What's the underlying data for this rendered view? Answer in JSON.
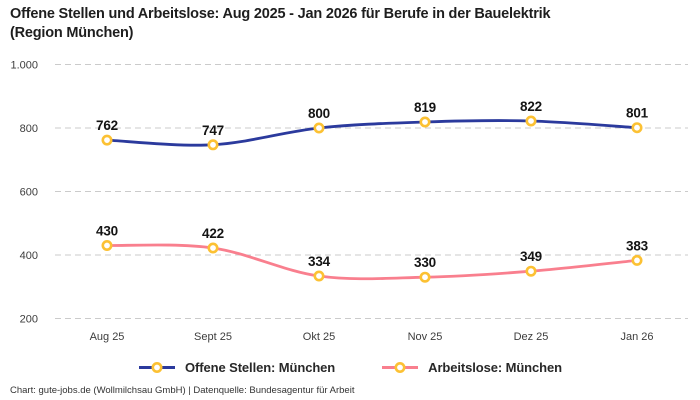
{
  "header": {
    "title_line1": "Offene Stellen und Arbeitslose: Aug 2025 - Jan 2026 für Berufe in der Bauelektrik",
    "title_line2": "(Region München)"
  },
  "chart_data": {
    "type": "line",
    "title": "Offene Stellen und Arbeitslose: Aug 2025 - Jan 2026 für Berufe in der Bauelektrik (Region München)",
    "categories": [
      "Aug 25",
      "Sept 25",
      "Okt 25",
      "Nov 25",
      "Dez 25",
      "Jan 26"
    ],
    "series": [
      {
        "name": "Offene Stellen: München",
        "color": "#2b3a9d",
        "values": [
          762,
          747,
          800,
          819,
          822,
          801
        ]
      },
      {
        "name": "Arbeitslose: München",
        "color": "#f97f8e",
        "values": [
          430,
          422,
          334,
          330,
          349,
          383
        ]
      }
    ],
    "xlabel": "",
    "ylabel": "",
    "ylim": [
      200,
      1000
    ],
    "y_ticks": [
      1000,
      800,
      600,
      400,
      200
    ],
    "y_tick_labels": [
      "1.000",
      "800",
      "600",
      "400",
      "200"
    ],
    "grid": "horizontal-dashed",
    "grid_color": "#cbcbcb",
    "marker": {
      "fill": "#ffffff",
      "stroke": "#fcc133"
    },
    "legend_position": "bottom"
  },
  "footer": {
    "credit": "Chart: gute-jobs.de (Wollmilchsau GmbH) | Datenquelle: Bundesagentur für Arbeit"
  }
}
